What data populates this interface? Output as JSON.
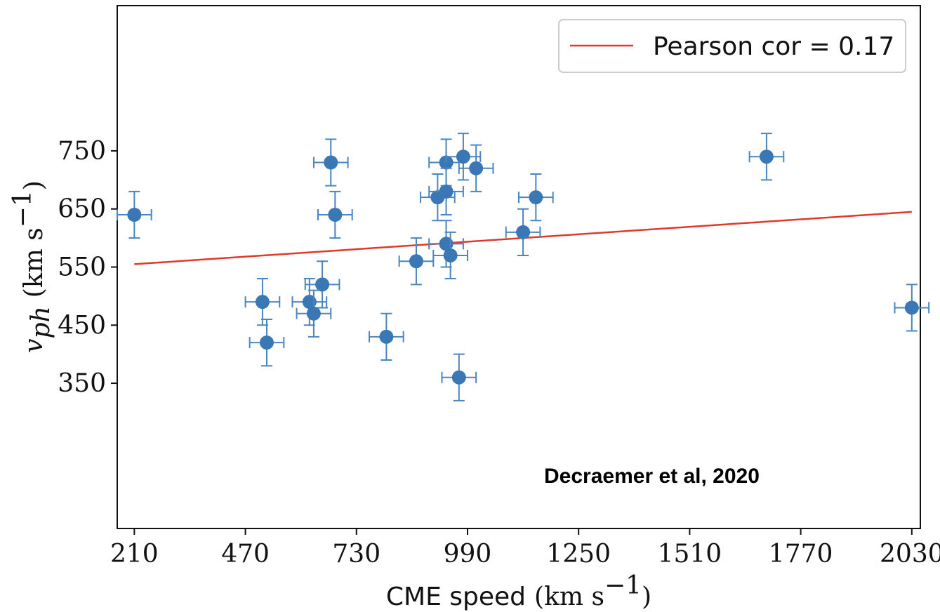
{
  "colors": {
    "marker": "#3a78b5",
    "errorbar": "#4a86c0",
    "fit_line": "#e0392b",
    "axes": "#111111",
    "legend_border": "#cccccc"
  },
  "chart_data": {
    "type": "scatter",
    "xlabel_text": "CME speed",
    "xlabel_unit": "(km s",
    "xlabel_exp": "−1",
    "xlabel_close": ")",
    "ylabel_var": "v",
    "ylabel_sub": "ph",
    "ylabel_unit": "(km s",
    "ylabel_exp": "−1",
    "ylabel_close": ")",
    "xlim": [
      170,
      2050
    ],
    "ylim": [
      100,
      1000
    ],
    "xticks": [
      "210",
      "470",
      "730",
      "990",
      "1250",
      "1510",
      "1770",
      "2030"
    ],
    "yticks": [
      "350",
      "450",
      "550",
      "650",
      "750"
    ],
    "grid": false,
    "legend": {
      "position": "top-right",
      "entries": [
        {
          "label": "Pearson cor = 0.17",
          "type": "line"
        }
      ]
    },
    "annotation": "Decraemer et al, 2020",
    "xerr": 40,
    "yerr": 40,
    "points": [
      {
        "x": 210,
        "y": 640
      },
      {
        "x": 510,
        "y": 490
      },
      {
        "x": 520,
        "y": 420
      },
      {
        "x": 620,
        "y": 490
      },
      {
        "x": 630,
        "y": 470
      },
      {
        "x": 650,
        "y": 520
      },
      {
        "x": 670,
        "y": 730
      },
      {
        "x": 680,
        "y": 640
      },
      {
        "x": 800,
        "y": 430
      },
      {
        "x": 870,
        "y": 560
      },
      {
        "x": 920,
        "y": 670
      },
      {
        "x": 940,
        "y": 730
      },
      {
        "x": 940,
        "y": 680
      },
      {
        "x": 940,
        "y": 590
      },
      {
        "x": 950,
        "y": 570
      },
      {
        "x": 970,
        "y": 360
      },
      {
        "x": 980,
        "y": 740
      },
      {
        "x": 1010,
        "y": 720
      },
      {
        "x": 1120,
        "y": 610
      },
      {
        "x": 1150,
        "y": 670
      },
      {
        "x": 1690,
        "y": 740
      },
      {
        "x": 2030,
        "y": 480
      }
    ],
    "fit_line": {
      "label": "Pearson cor = 0.17",
      "x": [
        210,
        2030
      ],
      "y": [
        555,
        645
      ]
    }
  }
}
